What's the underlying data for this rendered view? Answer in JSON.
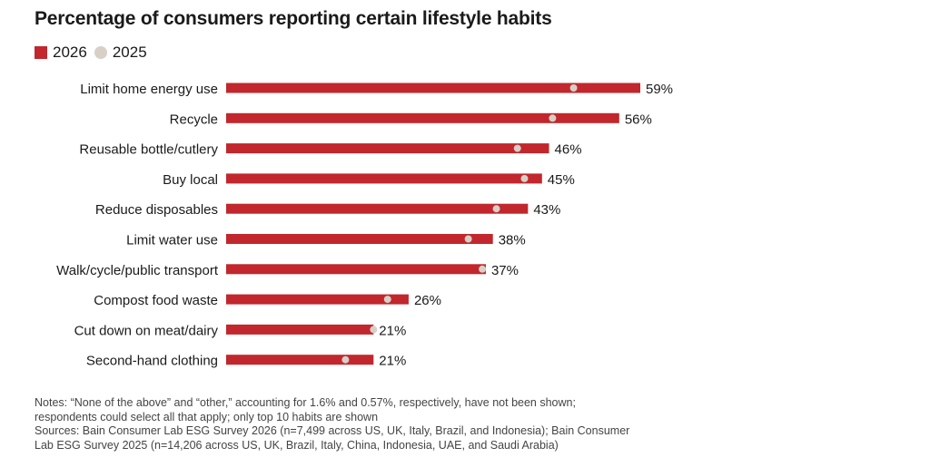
{
  "title": "Percentage of consumers reporting certain lifestyle habits",
  "legend": {
    "series_2026": "2026",
    "series_2025": "2025"
  },
  "colors": {
    "bar_2026": "#c1272d",
    "dot_2025": "#d8cfc6"
  },
  "chart_data": {
    "type": "bar",
    "orientation": "horizontal",
    "title": "Percentage of consumers reporting certain lifestyle habits",
    "categories": [
      "Limit home energy use",
      "Recycle",
      "Reusable bottle/cutlery",
      "Buy local",
      "Reduce disposables",
      "Limit water use",
      "Walk/cycle/public transport",
      "Compost food waste",
      "Cut down on meat/dairy",
      "Second-hand clothing"
    ],
    "series": [
      {
        "name": "2026",
        "values": [
          59,
          56,
          46,
          45,
          43,
          38,
          37,
          26,
          21,
          21
        ],
        "labels": [
          "59%",
          "56%",
          "46%",
          "45%",
          "43%",
          "38%",
          "37%",
          "26%",
          "21%",
          "21%"
        ]
      },
      {
        "name": "2025",
        "values": [
          49.5,
          46.5,
          41.5,
          42.5,
          38.5,
          34.5,
          36.5,
          23,
          21,
          17
        ]
      }
    ],
    "xlim": [
      0,
      59
    ],
    "grid": false,
    "legend_position": "top-left"
  },
  "notes": {
    "line1": "Notes: “None of the above” and “other,” accounting for 1.6% and 0.57%, respectively, have not been shown;",
    "line2": "respondents could select all that apply; only top 10 habits are shown",
    "line3": "Sources: Bain Consumer Lab ESG Survey 2026 (n=7,499 across US, UK, Italy, Brazil, and Indonesia); Bain Consumer",
    "line4": "Lab ESG Survey 2025 (n=14,206 across US, UK, Brazil, Italy, China, Indonesia, UAE, and Saudi Arabia)"
  }
}
